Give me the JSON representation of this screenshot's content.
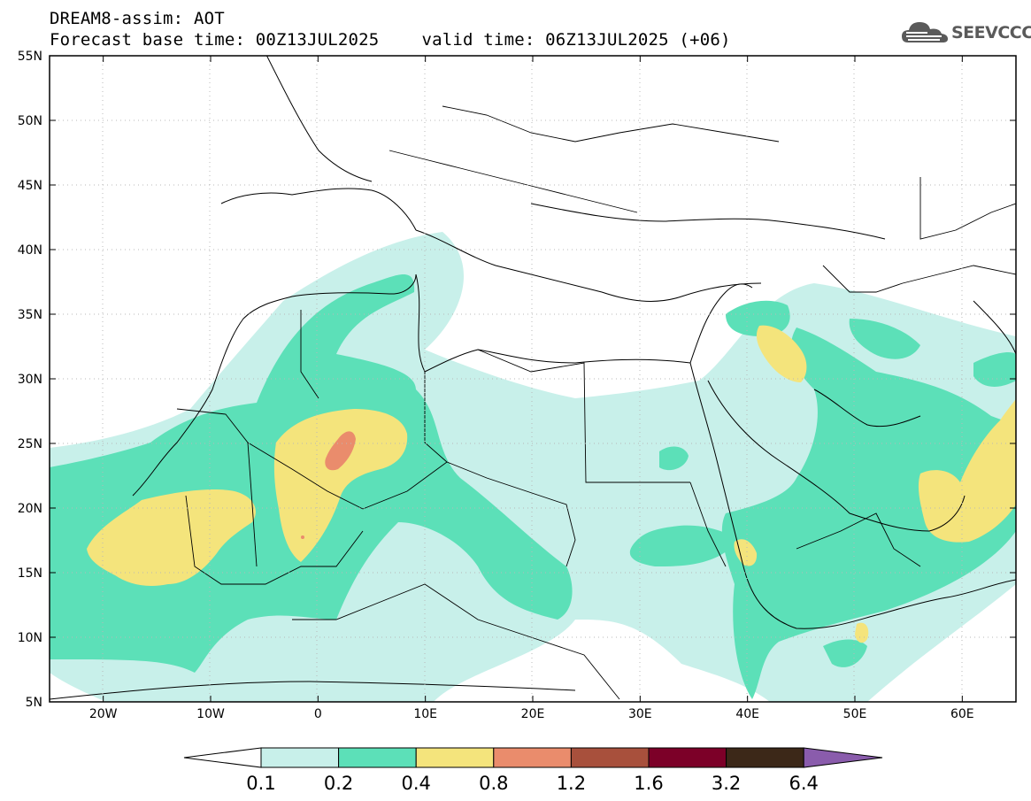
{
  "title": {
    "model_field": "DREAM8-assim: AOT",
    "base_time": "Forecast base time: 00Z13JUL2025",
    "valid_time": "valid time: 06Z13JUL2025 (+06)"
  },
  "logo": {
    "text": "SEEVCCC",
    "icon": "cloud-icon"
  },
  "axes": {
    "lat_labels": [
      "55N",
      "50N",
      "45N",
      "40N",
      "35N",
      "30N",
      "25N",
      "20N",
      "15N",
      "10N",
      "5N"
    ],
    "lon_labels": [
      "20W",
      "10W",
      "0",
      "10E",
      "20E",
      "30E",
      "40E",
      "50E",
      "60E"
    ],
    "lat_range": [
      5,
      55
    ],
    "lon_range": [
      -25,
      65
    ]
  },
  "colorbar": {
    "levels": [
      "0.1",
      "0.2",
      "0.4",
      "0.8",
      "1.2",
      "1.6",
      "3.2",
      "6.4"
    ],
    "colors": [
      "#ffffff",
      "#c8f0ea",
      "#5ce0b8",
      "#f4e47c",
      "#ea8c6c",
      "#a8503c",
      "#7c0028",
      "#3c2818",
      "#8a5cac"
    ]
  },
  "colors": {
    "aot_01_02": "#c8f0ea",
    "aot_02_04": "#5ce0b8",
    "aot_04_08": "#f4e47c",
    "aot_08_12": "#ea8c6c",
    "land_border": "#000000"
  }
}
